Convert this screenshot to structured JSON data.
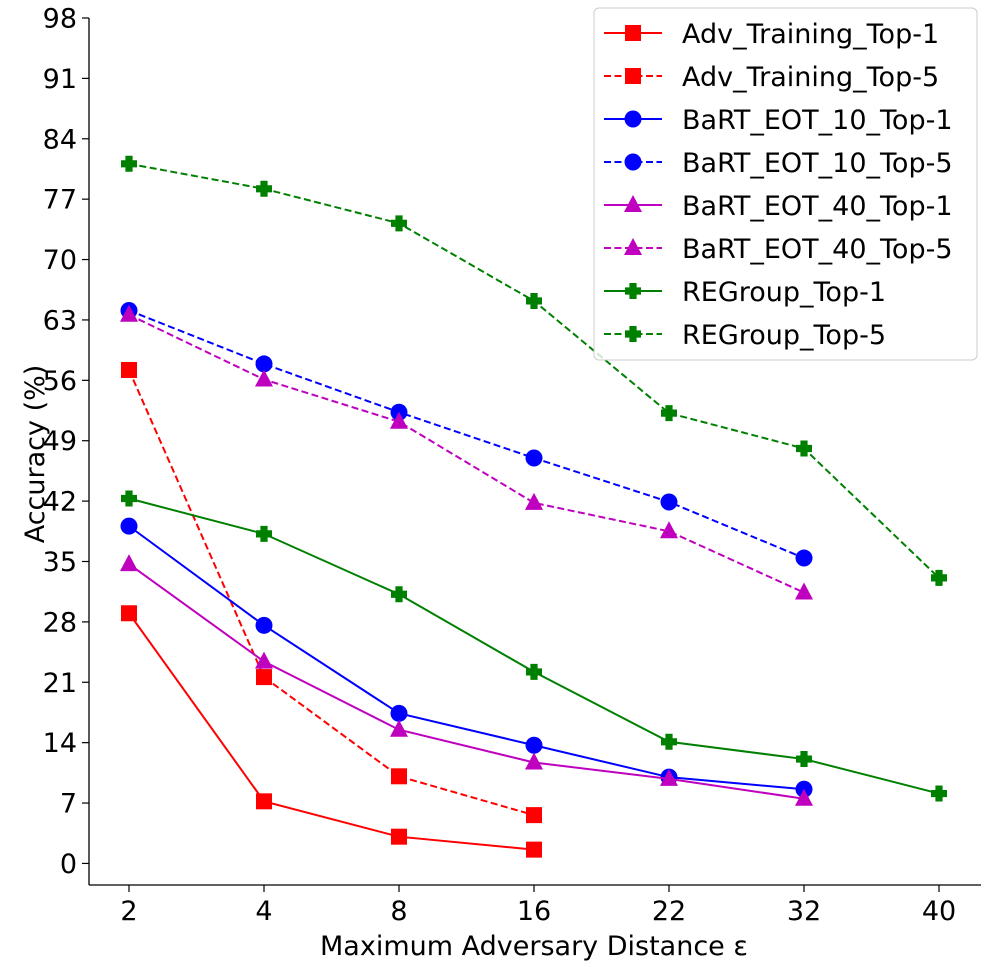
{
  "chart_data": {
    "type": "line",
    "title": "",
    "xlabel": "Maximum Adversary Distance ε",
    "ylabel": "Accuracy (%)",
    "categories": [
      "2",
      "4",
      "8",
      "16",
      "22",
      "32",
      "40"
    ],
    "ylim": [
      -2.5,
      98
    ],
    "yticks": [
      0,
      7,
      14,
      21,
      28,
      35,
      42,
      49,
      56,
      63,
      70,
      77,
      84,
      91,
      98
    ],
    "grid": false,
    "legend_position": "top-right",
    "series": [
      {
        "name": "Adv_Training_Top-1",
        "color": "#ff0000",
        "dash": "solid",
        "marker": "square",
        "values": [
          29,
          7.2,
          3.1,
          1.6,
          null,
          null,
          null
        ]
      },
      {
        "name": "Adv_Training_Top-5",
        "color": "#ff0000",
        "dash": "dashed",
        "marker": "square",
        "values": [
          57.2,
          21.6,
          10.1,
          5.6,
          null,
          null,
          null
        ]
      },
      {
        "name": "BaRT_EOT_10_Top-1",
        "color": "#0000ff",
        "dash": "solid",
        "marker": "circle",
        "values": [
          39.1,
          27.6,
          17.4,
          13.7,
          10,
          8.6,
          null
        ]
      },
      {
        "name": "BaRT_EOT_10_Top-5",
        "color": "#0000ff",
        "dash": "dashed",
        "marker": "circle",
        "values": [
          64.1,
          57.9,
          52.3,
          47,
          41.9,
          35.4,
          null
        ]
      },
      {
        "name": "BaRT_EOT_40_Top-1",
        "color": "#bf00bf",
        "dash": "solid",
        "marker": "triangle",
        "values": [
          34.7,
          23.4,
          15.5,
          11.7,
          9.8,
          7.5,
          null
        ]
      },
      {
        "name": "BaRT_EOT_40_Top-5",
        "color": "#bf00bf",
        "dash": "dashed",
        "marker": "triangle",
        "values": [
          63.6,
          56.1,
          51.2,
          41.8,
          38.5,
          31.4,
          null
        ]
      },
      {
        "name": "REGroup_Top-1",
        "color": "#008000",
        "dash": "solid",
        "marker": "plus",
        "values": [
          42.3,
          38.2,
          31.2,
          22.2,
          14.1,
          12.1,
          8.1
        ]
      },
      {
        "name": "REGroup_Top-5",
        "color": "#008000",
        "dash": "dashed",
        "marker": "plus",
        "values": [
          81.1,
          78.2,
          74.2,
          65.2,
          52.2,
          48.1,
          33.1
        ]
      }
    ]
  }
}
